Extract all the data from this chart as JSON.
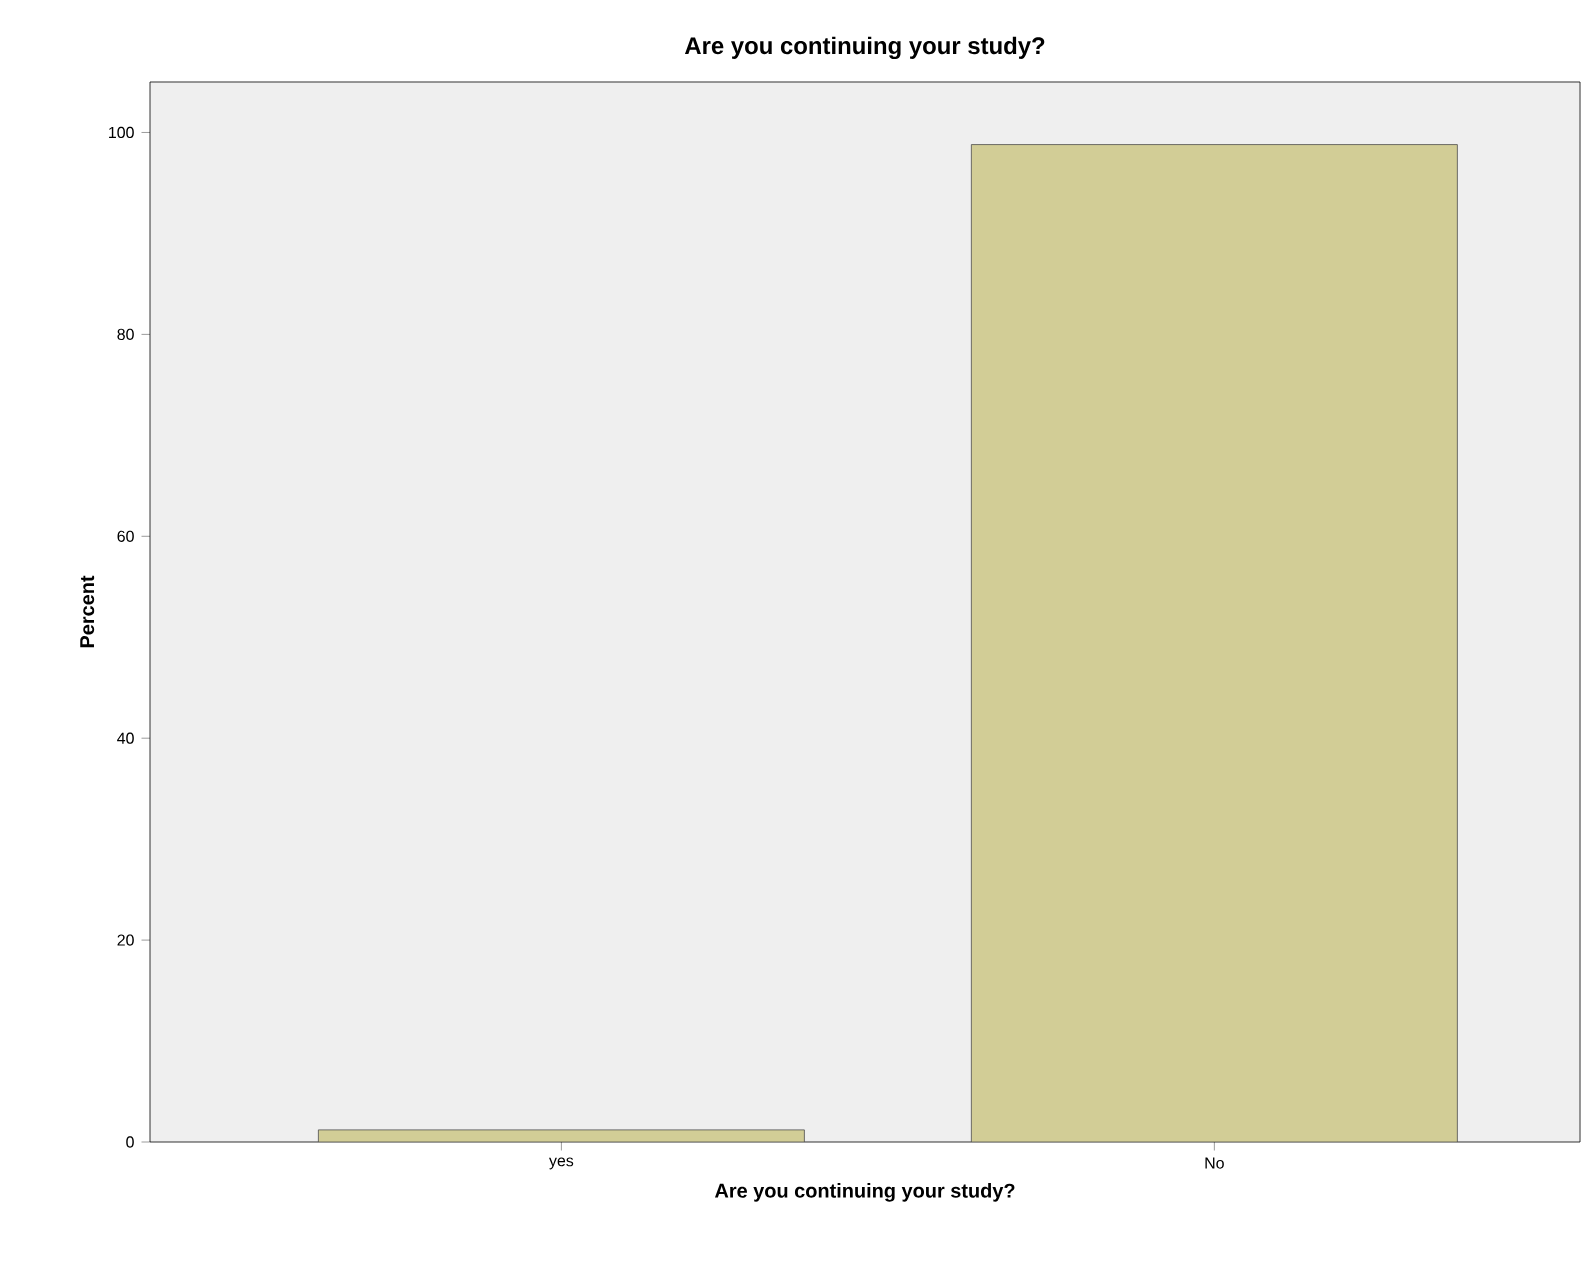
{
  "chart_data": {
    "type": "bar",
    "title": "Are you continuing your study?",
    "xlabel": "Are you continuing your study?",
    "ylabel": "Percent",
    "categories": [
      "yes",
      "No"
    ],
    "values": [
      1.2,
      98.8
    ],
    "color": "#d2cd96",
    "ylim": [
      0,
      105
    ],
    "yticks": [
      0,
      20,
      40,
      60,
      80,
      100
    ]
  }
}
